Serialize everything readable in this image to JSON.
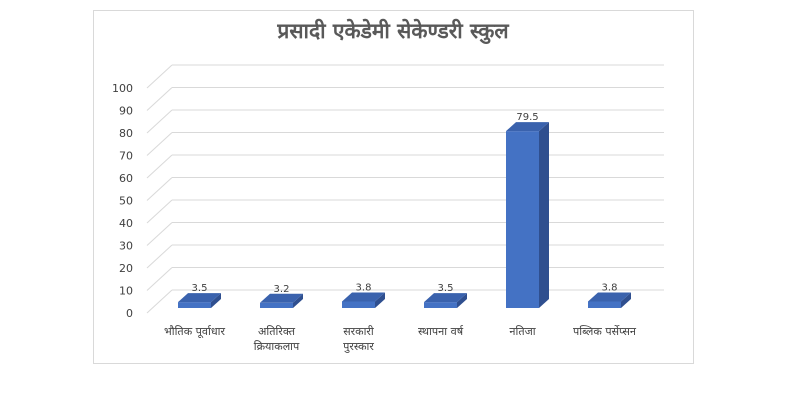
{
  "chart_data": {
    "type": "bar",
    "title": "प्रसादी एकेडेमी सेकेण्डरी स्कुल",
    "categories": [
      [
        "भौतिक पूर्वाधार"
      ],
      [
        "अतिरिक्त",
        "क्रियाकलाप"
      ],
      [
        "सरकारी",
        "पुरस्कार"
      ],
      [
        "स्थापना वर्ष"
      ],
      [
        "नतिजा"
      ],
      [
        "पब्लिक पर्सेप्सन"
      ]
    ],
    "values": [
      3.5,
      3.2,
      3.8,
      3.5,
      79.5,
      3.8
    ],
    "data_labels": [
      "3.5",
      "3.2",
      "3.8",
      "3.5",
      "79.5",
      "3.8"
    ],
    "y_ticks": [
      "0",
      "10",
      "20",
      "30",
      "40",
      "50",
      "60",
      "70",
      "80",
      "90",
      "100"
    ],
    "ylim": [
      0,
      100
    ],
    "grid": true,
    "bar_color": "#4472c4",
    "bar_side_color": "#2f4f8f",
    "bar_top_color": "#3a62ad",
    "grid_color": "#d9d9d9"
  }
}
